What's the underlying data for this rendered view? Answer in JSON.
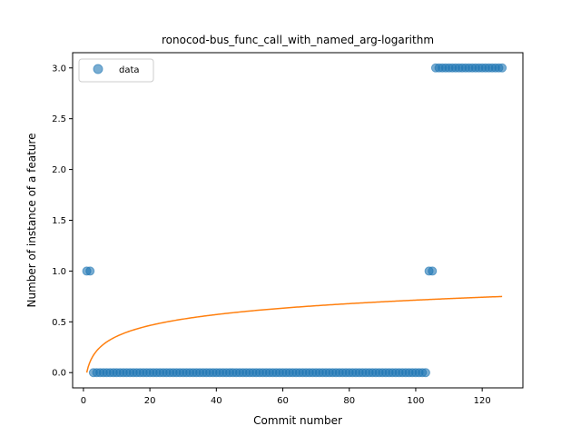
{
  "chart_data": {
    "type": "scatter",
    "title": "ronocod-bus_func_call_with_named_arg-logarithm",
    "xlabel": "Commit number",
    "ylabel": "Number of instance of a feature",
    "xlim": [
      -3.25,
      132.25
    ],
    "ylim": [
      -0.15,
      3.15
    ],
    "xticks": [
      0,
      20,
      40,
      60,
      80,
      100,
      120
    ],
    "yticks": [
      0.0,
      0.5,
      1.0,
      1.5,
      2.0,
      2.5,
      3.0
    ],
    "ytick_labels": [
      "0.0",
      "0.5",
      "1.0",
      "1.5",
      "2.0",
      "2.5",
      "3.0"
    ],
    "grid": false,
    "legend_position": "upper-left",
    "series": [
      {
        "name": "data",
        "kind": "scatter",
        "color": "#1f77b4",
        "segments": [
          {
            "x_start": 1,
            "x_end": 2,
            "y": 1
          },
          {
            "x_start": 3,
            "x_end": 103,
            "y": 0
          },
          {
            "x_start": 104,
            "x_end": 105,
            "y": 1
          },
          {
            "x_start": 106,
            "x_end": 126,
            "y": 3
          }
        ]
      },
      {
        "kind": "line",
        "color": "#ff7f0e",
        "model": "a*ln(x)+b",
        "a": 0.155,
        "b": 0.0,
        "x_range": [
          1,
          126
        ]
      }
    ]
  }
}
